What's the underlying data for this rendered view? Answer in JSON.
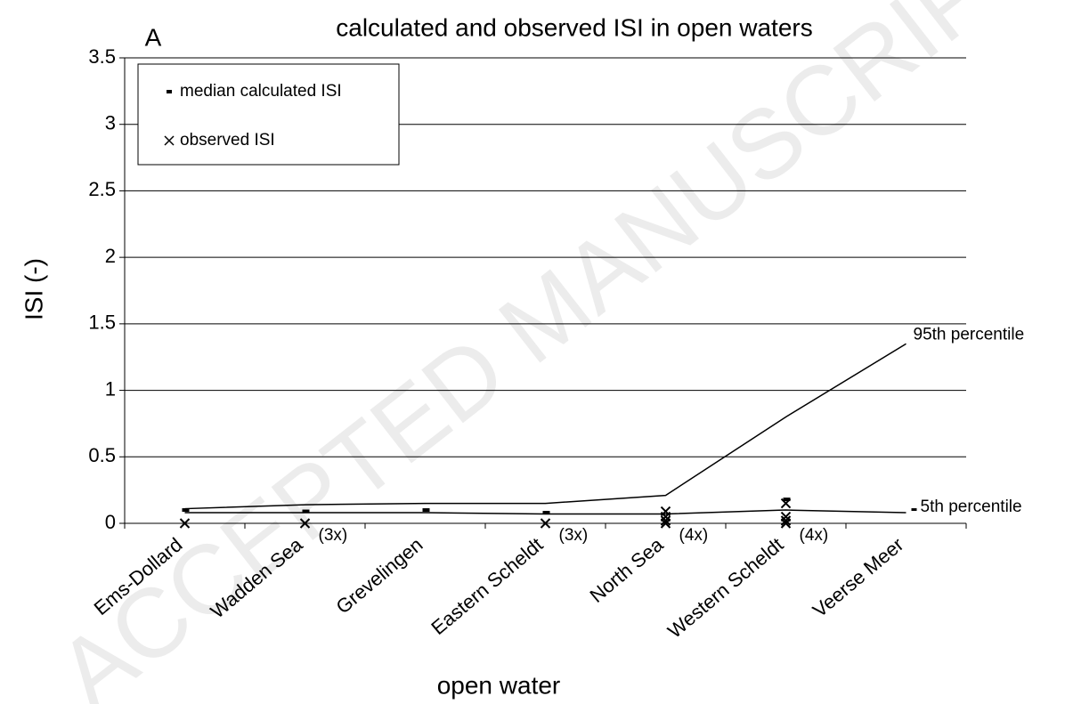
{
  "chart_data": {
    "type": "line",
    "panel": "A",
    "title": "calculated and observed ISI in open waters",
    "x_label": "open water",
    "y_label": "ISI (-)",
    "watermark": "ACCEPTED MANUSCRIPT",
    "categories": [
      "Ems-Dollard",
      "Wadden Sea",
      "Grevelingen",
      "Eastern Scheldt",
      "North Sea",
      "Western Scheldt",
      "Veerse Meer"
    ],
    "ylim": [
      0,
      3.5
    ],
    "yticks": [
      0,
      0.5,
      1,
      1.5,
      2,
      2.5,
      3,
      3.5
    ],
    "grid": true,
    "series": [
      {
        "name": "95th percentile",
        "color": "#000000",
        "kind": "line",
        "values": [
          0.11,
          0.14,
          0.15,
          0.15,
          0.21,
          0.8,
          1.35
        ]
      },
      {
        "name": "5th percentile",
        "color": "#000000",
        "kind": "line",
        "values": [
          0.08,
          0.08,
          0.08,
          0.07,
          0.07,
          0.1,
          0.08
        ]
      },
      {
        "name": "median calculated ISI",
        "color": "#000000",
        "kind": "dash",
        "values": [
          0.1,
          0.09,
          0.1,
          0.08,
          null,
          0.18,
          null
        ]
      },
      {
        "name": "observed ISI",
        "color": "#000000",
        "kind": "cross",
        "values": [
          [
            0
          ],
          [
            0
          ],
          [],
          [
            0
          ],
          [
            0,
            0.02,
            0.05,
            0.09
          ],
          [
            0,
            0.02,
            0.05,
            0.15
          ],
          []
        ]
      }
    ],
    "annotations": [
      {
        "text": "(3x)",
        "category": "Wadden Sea"
      },
      {
        "text": "(3x)",
        "category": "Eastern Scheldt"
      },
      {
        "text": "(4x)",
        "category": "North Sea"
      },
      {
        "text": "(4x)",
        "category": "Western Scheldt"
      }
    ]
  }
}
